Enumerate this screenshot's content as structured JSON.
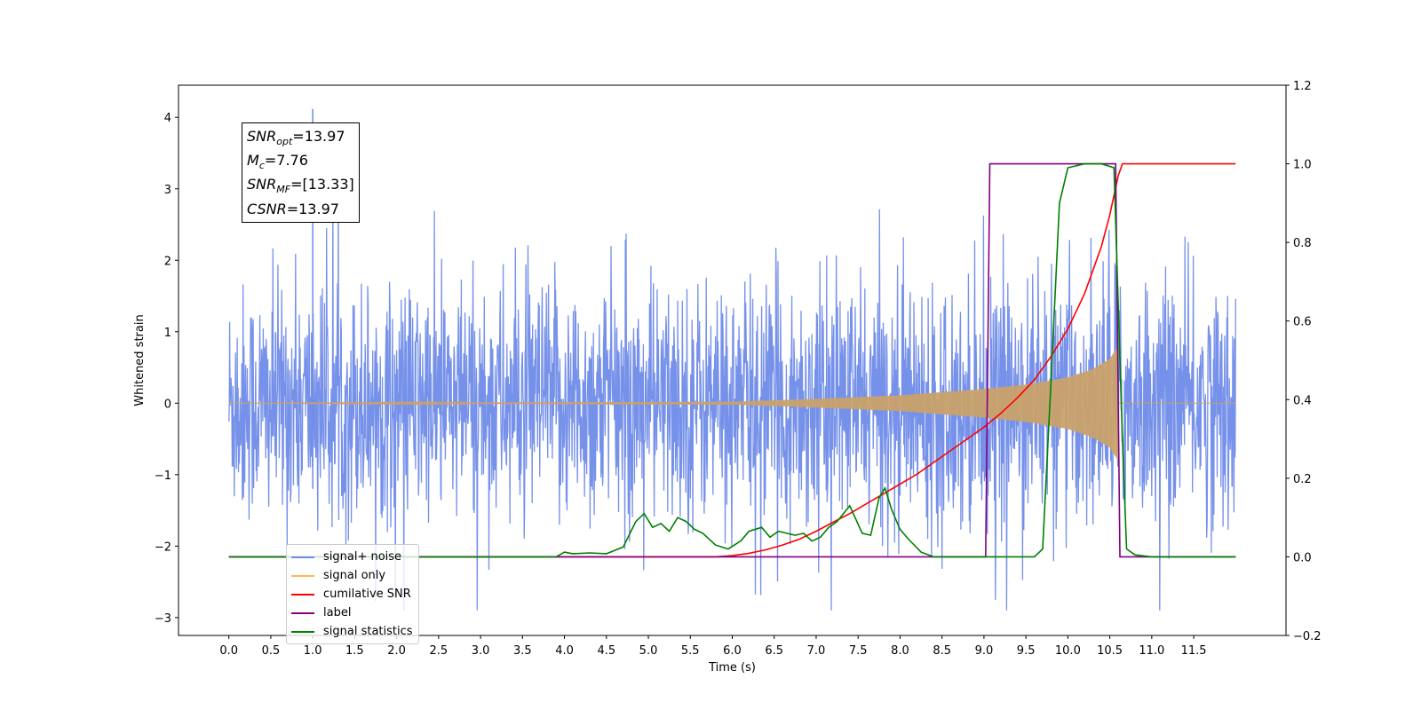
{
  "chart_data": {
    "type": "line",
    "xlabel": "Time (s)",
    "ylabel": "Whitened strain",
    "y2label": "",
    "xlim": [
      -0.6,
      12.6
    ],
    "ylim": [
      -3.25,
      4.45
    ],
    "y2lim": [
      -0.2,
      1.2
    ],
    "xticks": [
      "0.0",
      "0.5",
      "1.0",
      "1.5",
      "2.0",
      "2.5",
      "3.0",
      "3.5",
      "4.0",
      "4.5",
      "5.0",
      "5.5",
      "6.0",
      "6.5",
      "7.0",
      "7.5",
      "8.0",
      "8.5",
      "9.0",
      "9.5",
      "10.0",
      "10.5",
      "11.0",
      "11.5"
    ],
    "yticks": [
      "−3",
      "−2",
      "−1",
      "0",
      "1",
      "2",
      "3",
      "4"
    ],
    "y2ticks": [
      "−0.2",
      "0.0",
      "0.2",
      "0.4",
      "0.6",
      "0.8",
      "1.0",
      "1.2"
    ],
    "legend_loc": "lower left",
    "grid": false,
    "series": [
      {
        "name": "signal+ noise",
        "color": "#6f8be8",
        "axis": "left",
        "kind": "noise",
        "description_points": {
          "x_range": [
            0.0,
            12.0
          ],
          "std": 0.82,
          "peak_max": 4.12,
          "peak_min": -2.9
        }
      },
      {
        "name": "signal only",
        "color": "#ffb74d",
        "axis": "left",
        "kind": "chirp",
        "envelope": {
          "x": [
            0.0,
            6.0,
            7.0,
            8.0,
            9.0,
            9.5,
            10.0,
            10.3,
            10.5,
            10.6
          ],
          "y": [
            0.0,
            0.02,
            0.06,
            0.11,
            0.2,
            0.26,
            0.36,
            0.48,
            0.62,
            0.8
          ]
        }
      },
      {
        "name": "cumilative SNR",
        "color": "#ff0000",
        "axis": "right",
        "x": [
          0.0,
          5.8,
          6.0,
          6.2,
          6.4,
          6.6,
          6.8,
          7.0,
          7.2,
          7.4,
          7.6,
          7.8,
          8.0,
          8.2,
          8.4,
          8.6,
          8.8,
          9.0,
          9.2,
          9.4,
          9.6,
          9.8,
          10.0,
          10.2,
          10.4,
          10.5,
          10.6,
          10.65,
          12.0
        ],
        "y": [
          0.0,
          0.0,
          0.003,
          0.009,
          0.018,
          0.03,
          0.045,
          0.065,
          0.088,
          0.11,
          0.135,
          0.16,
          0.185,
          0.21,
          0.24,
          0.27,
          0.3,
          0.33,
          0.365,
          0.405,
          0.45,
          0.51,
          0.58,
          0.67,
          0.79,
          0.87,
          0.97,
          1.0,
          1.0
        ]
      },
      {
        "name": "label",
        "color": "#800080",
        "axis": "right",
        "x": [
          0.0,
          9.02,
          9.07,
          10.57,
          10.62,
          12.0
        ],
        "y": [
          0.0,
          0.0,
          1.0,
          1.0,
          0.0,
          0.0
        ]
      },
      {
        "name": "signal statistics",
        "color": "#008000",
        "axis": "right",
        "x": [
          0.0,
          3.9,
          4.0,
          4.1,
          4.3,
          4.5,
          4.7,
          4.85,
          4.95,
          5.05,
          5.15,
          5.25,
          5.35,
          5.45,
          5.55,
          5.65,
          5.8,
          5.95,
          6.1,
          6.2,
          6.35,
          6.45,
          6.55,
          6.65,
          6.75,
          6.85,
          6.95,
          7.05,
          7.15,
          7.25,
          7.4,
          7.55,
          7.65,
          7.75,
          7.82,
          7.9,
          8.0,
          8.1,
          8.25,
          8.4,
          8.6,
          9.6,
          9.7,
          9.8,
          9.9,
          10.0,
          10.2,
          10.4,
          10.55,
          10.65,
          10.7,
          10.8,
          11.0,
          12.0
        ],
        "y": [
          0.0,
          0.0,
          0.012,
          0.008,
          0.01,
          0.008,
          0.025,
          0.09,
          0.11,
          0.075,
          0.085,
          0.065,
          0.1,
          0.09,
          0.07,
          0.06,
          0.03,
          0.02,
          0.04,
          0.065,
          0.075,
          0.05,
          0.065,
          0.06,
          0.055,
          0.06,
          0.04,
          0.05,
          0.075,
          0.09,
          0.13,
          0.06,
          0.055,
          0.15,
          0.175,
          0.12,
          0.07,
          0.045,
          0.012,
          0.0,
          0.0,
          0.0,
          0.02,
          0.45,
          0.9,
          0.99,
          1.0,
          1.0,
          0.99,
          0.3,
          0.02,
          0.005,
          0.0,
          0.0
        ]
      }
    ]
  },
  "annotation": {
    "snr_opt": {
      "name": "SNR",
      "sub": "opt",
      "value": "=13.97"
    },
    "mc": {
      "name": "M",
      "sub": "c",
      "value": "=7.76"
    },
    "snr_mf": {
      "name": "SNR",
      "sub": "MF",
      "value": "=[13.33]"
    },
    "csnr": {
      "name": "CSNR",
      "value": "=13.97"
    }
  },
  "legend": [
    {
      "label": "signal+ noise",
      "color": "#6f8be8"
    },
    {
      "label": "signal only",
      "color": "#ffb74d"
    },
    {
      "label": "cumilative SNR",
      "color": "#ff0000"
    },
    {
      "label": "label",
      "color": "#800080"
    },
    {
      "label": "signal statistics",
      "color": "#008000"
    }
  ]
}
